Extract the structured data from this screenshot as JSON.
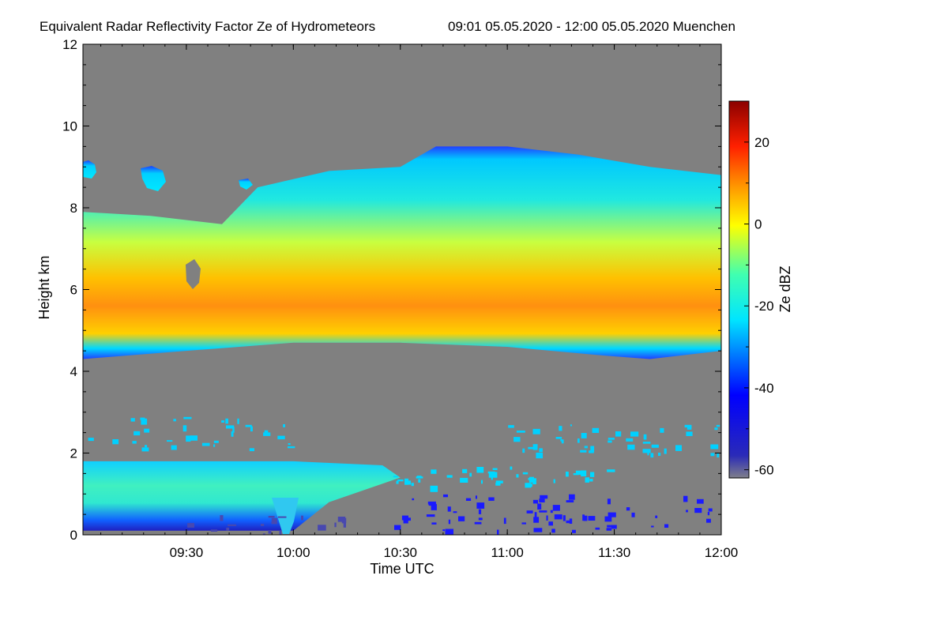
{
  "chart_data": {
    "type": "heatmap",
    "title": "Equivalent Radar Reflectivity Factor Ze of Hydrometeors",
    "subtitle": "09:01 05.05.2020 - 12:00 05.05.2020 Muenchen",
    "xlabel": "Time UTC",
    "ylabel": "Height km",
    "colorbar_label": "Ze dBZ",
    "x_range": [
      "09:01",
      "12:00"
    ],
    "x_range_min": [
      541,
      720
    ],
    "ylim": [
      0,
      12
    ],
    "clim": [
      -62,
      30
    ],
    "x_ticks": [
      {
        "label": "09:30",
        "minute": 570
      },
      {
        "label": "10:00",
        "minute": 600
      },
      {
        "label": "10:30",
        "minute": 630
      },
      {
        "label": "11:00",
        "minute": 660
      },
      {
        "label": "11:30",
        "minute": 690
      },
      {
        "label": "12:00",
        "minute": 720
      }
    ],
    "y_ticks": [
      0,
      2,
      4,
      6,
      8,
      10,
      12
    ],
    "colorbar_ticks": [
      20,
      0,
      -20,
      -40,
      -60
    ],
    "colorscale": [
      "#7f7f8a",
      "#0000ff",
      "#00e5ff",
      "#ffff00",
      "#ff8000",
      "#ff0000",
      "#8b0000"
    ],
    "no_signal_color": "#808080",
    "upper_cloud_layer": {
      "base_km": [
        [
          541,
          4.3
        ],
        [
          570,
          4.5
        ],
        [
          600,
          4.7
        ],
        [
          630,
          4.7
        ],
        [
          660,
          4.6
        ],
        [
          685,
          4.4
        ],
        [
          700,
          4.3
        ],
        [
          720,
          4.5
        ]
      ],
      "top_km": [
        [
          541,
          7.9
        ],
        [
          560,
          7.8
        ],
        [
          580,
          7.6
        ],
        [
          590,
          8.5
        ],
        [
          610,
          8.9
        ],
        [
          630,
          9.0
        ],
        [
          640,
          9.5
        ],
        [
          660,
          9.5
        ],
        [
          680,
          9.3
        ],
        [
          700,
          9.0
        ],
        [
          720,
          8.8
        ]
      ],
      "core_dbz": 5
    },
    "lower_cloud_layer": {
      "base_km": [
        [
          541,
          0.1
        ],
        [
          600,
          0.1
        ],
        [
          610,
          0.8
        ]
      ],
      "top_km": [
        [
          541,
          1.8
        ],
        [
          570,
          1.8
        ],
        [
          600,
          1.8
        ],
        [
          625,
          1.7
        ],
        [
          630,
          1.4
        ]
      ],
      "core_dbz": -20
    }
  }
}
